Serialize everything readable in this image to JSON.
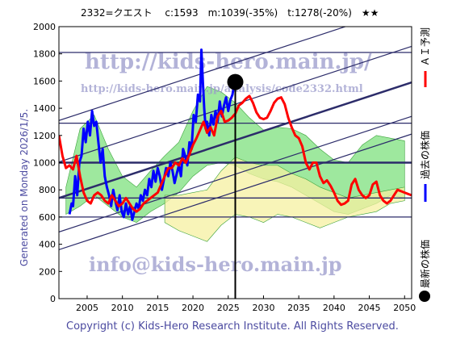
{
  "header": {
    "title": "2332=クエスト　 c:1593　m:1039(-35%)　t:1278(-20%)　★★"
  },
  "generated_label": "Generated on Monday 2026/1/5.",
  "copyright": "Copyright (c) Kids-Hero Research Institute. All Rights Reserved.",
  "watermarks": {
    "url_main": "http://kids-hero.main.jp/",
    "url_analysis": "http://kids-hero.main.jp/analysis/code2332.html",
    "email": "info@kids-hero.main.jp"
  },
  "legend": {
    "ai": "ＡＩ予測",
    "past": "過去の株価",
    "latest": "最新の株価"
  },
  "colors": {
    "ai_line": "#ff0000",
    "past_line": "#0000ff",
    "band_green": "#7ee07e",
    "band_yellow": "#f5f0a0",
    "channel_lines": "#2c2c6a",
    "axis_text": "#4b4aa0"
  },
  "chart_data": {
    "type": "line",
    "title": "2332=クエスト　 c:1593　m:1039(-35%)　t:1278(-20%)　★★",
    "xlim": [
      2001,
      2051
    ],
    "ylim": [
      0,
      2000
    ],
    "x_ticks": [
      2005,
      2010,
      2015,
      2020,
      2025,
      2030,
      2035,
      2040,
      2045,
      2050
    ],
    "y_ticks": [
      0,
      200,
      400,
      600,
      800,
      1000,
      1200,
      1400,
      1600,
      1800,
      2000
    ],
    "grid": false,
    "latest_point": {
      "x": 2026.0,
      "y": 1593
    },
    "current_year_marker": 2026.0,
    "horizontal_levels": [
      {
        "value": 1810,
        "weight": "normal"
      },
      {
        "value": 1290,
        "weight": "normal"
      },
      {
        "value": 1000,
        "weight": "bold"
      },
      {
        "value": 740,
        "weight": "normal"
      },
      {
        "value": 600,
        "weight": "normal"
      }
    ],
    "channel_lines": [
      {
        "from": [
          2001,
          1310
        ],
        "to": [
          2051,
          2160
        ],
        "weight": "normal"
      },
      {
        "from": [
          2001,
          1005
        ],
        "to": [
          2051,
          1855
        ],
        "weight": "normal"
      },
      {
        "from": [
          2001,
          740
        ],
        "to": [
          2051,
          1590
        ],
        "weight": "bold"
      },
      {
        "from": [
          2001,
          490
        ],
        "to": [
          2051,
          1340
        ],
        "weight": "normal"
      },
      {
        "from": [
          2001,
          360
        ],
        "to": [
          2051,
          1210
        ],
        "weight": "normal"
      }
    ],
    "series": [
      {
        "name": "過去の株価",
        "color": "#0000ff",
        "x": [
          2002.5,
          2002.8,
          2003.0,
          2003.3,
          2003.6,
          2003.9,
          2004.2,
          2004.5,
          2004.8,
          2005.1,
          2005.4,
          2005.7,
          2006.0,
          2006.3,
          2006.6,
          2006.9,
          2007.2,
          2007.5,
          2007.8,
          2008.1,
          2008.4,
          2008.7,
          2009.0,
          2009.3,
          2009.6,
          2009.9,
          2010.2,
          2010.5,
          2010.8,
          2011.1,
          2011.4,
          2011.7,
          2012.0,
          2012.3,
          2012.6,
          2012.9,
          2013.2,
          2013.5,
          2013.8,
          2014.1,
          2014.4,
          2014.7,
          2015.0,
          2015.3,
          2015.6,
          2015.9,
          2016.2,
          2016.5,
          2016.8,
          2017.1,
          2017.4,
          2017.7,
          2018.0,
          2018.3,
          2018.6,
          2018.9,
          2019.2,
          2019.5,
          2019.8,
          2020.1,
          2020.4,
          2020.7,
          2021.0,
          2021.2,
          2021.4,
          2021.6,
          2021.8,
          2022.0,
          2022.3,
          2022.6,
          2022.9,
          2023.2,
          2023.5,
          2023.8,
          2024.1,
          2024.4,
          2024.7,
          2025.0,
          2025.3,
          2025.6,
          2025.9
        ],
        "y": [
          620,
          700,
          680,
          900,
          760,
          1000,
          1050,
          1250,
          1150,
          1300,
          1200,
          1380,
          1270,
          1300,
          1150,
          1000,
          1100,
          900,
          820,
          760,
          680,
          800,
          720,
          650,
          760,
          640,
          600,
          700,
          620,
          680,
          580,
          640,
          700,
          660,
          760,
          720,
          800,
          760,
          880,
          820,
          940,
          860,
          960,
          900,
          800,
          880,
          960,
          900,
          1000,
          940,
          850,
          920,
          980,
          900,
          1100,
          1050,
          980,
          1150,
          1100,
          1350,
          1300,
          1500,
          1450,
          1830,
          1600,
          1400,
          1250,
          1300,
          1200,
          1350,
          1280,
          1380,
          1300,
          1450,
          1340,
          1420,
          1480,
          1380,
          1460,
          1500,
          1593
        ]
      },
      {
        "name": "ＡＩ予測",
        "color": "#ff0000",
        "x": [
          2001.0,
          2001.5,
          2002.0,
          2002.5,
          2003.0,
          2003.5,
          2004.0,
          2004.5,
          2005.0,
          2005.5,
          2006.0,
          2006.5,
          2007.0,
          2007.5,
          2008.0,
          2008.5,
          2009.0,
          2009.5,
          2010.0,
          2010.5,
          2011.0,
          2011.5,
          2012.0,
          2012.5,
          2013.0,
          2013.5,
          2014.0,
          2014.5,
          2015.0,
          2015.5,
          2016.0,
          2016.5,
          2017.0,
          2017.5,
          2018.0,
          2018.5,
          2019.0,
          2019.5,
          2020.0,
          2020.5,
          2021.0,
          2021.5,
          2022.0,
          2022.5,
          2023.0,
          2023.5,
          2024.0,
          2024.5,
          2025.0,
          2025.5,
          2026.0,
          2026.5,
          2027.0,
          2027.5,
          2028.0,
          2028.5,
          2029.0,
          2029.5,
          2030.0,
          2030.5,
          2031.0,
          2031.5,
          2032.0,
          2032.5,
          2033.0,
          2033.5,
          2034.0,
          2034.5,
          2035.0,
          2035.5,
          2036.0,
          2036.5,
          2037.0,
          2037.5,
          2038.0,
          2038.5,
          2039.0,
          2039.5,
          2040.0,
          2040.5,
          2041.0,
          2041.5,
          2042.0,
          2042.5,
          2043.0,
          2043.5,
          2044.0,
          2044.5,
          2045.0,
          2045.5,
          2046.0,
          2046.5,
          2047.0,
          2047.5,
          2048.0,
          2048.5,
          2049.0,
          2049.5,
          2050.0,
          2050.5,
          2051.0
        ],
        "y": [
          1200,
          1050,
          960,
          980,
          950,
          1050,
          900,
          780,
          720,
          700,
          760,
          780,
          760,
          720,
          700,
          760,
          720,
          680,
          700,
          740,
          700,
          660,
          640,
          660,
          700,
          720,
          740,
          760,
          780,
          840,
          900,
          960,
          960,
          1000,
          980,
          1030,
          1000,
          1060,
          1130,
          1180,
          1240,
          1300,
          1220,
          1260,
          1200,
          1340,
          1380,
          1300,
          1310,
          1330,
          1360,
          1420,
          1440,
          1470,
          1490,
          1440,
          1370,
          1330,
          1320,
          1330,
          1380,
          1440,
          1470,
          1480,
          1430,
          1330,
          1260,
          1200,
          1180,
          1120,
          1000,
          950,
          1000,
          1000,
          900,
          850,
          870,
          830,
          780,
          720,
          690,
          700,
          720,
          840,
          880,
          800,
          760,
          740,
          760,
          840,
          860,
          760,
          720,
          700,
          720,
          760,
          800,
          790,
          780,
          770,
          760
        ]
      }
    ],
    "green_band": {
      "x": [
        2002.0,
        2004.0,
        2006.0,
        2008.0,
        2010.0,
        2012.0,
        2014.0,
        2016.0,
        2018.0,
        2020.0,
        2022.0,
        2024.0,
        2026.0,
        2028.0,
        2030.0,
        2032.0,
        2034.0,
        2036.0,
        2038.0,
        2040.0,
        2042.0,
        2044.0,
        2046.0,
        2048.0,
        2050.0
      ],
      "upper": [
        820,
        1250,
        1350,
        1100,
        900,
        820,
        940,
        1050,
        1150,
        1380,
        1560,
        1520,
        1440,
        1330,
        1240,
        1260,
        1250,
        1200,
        1100,
        1020,
        1000,
        1130,
        1200,
        1180,
        1160
      ],
      "lower": [
        620,
        680,
        760,
        680,
        600,
        560,
        640,
        700,
        780,
        900,
        980,
        1000,
        980,
        920,
        880,
        860,
        820,
        760,
        700,
        640,
        620,
        660,
        700,
        760,
        740
      ]
    },
    "yellow_band": {
      "x": [
        2016.0,
        2018.0,
        2020.0,
        2022.0,
        2024.0,
        2026.0,
        2028.0,
        2030.0,
        2032.0,
        2034.0,
        2036.0,
        2038.0,
        2040.0,
        2042.0,
        2044.0,
        2046.0,
        2048.0,
        2050.0
      ],
      "upper": [
        760,
        760,
        780,
        800,
        940,
        1040,
        1000,
        980,
        980,
        920,
        880,
        820,
        780,
        740,
        760,
        780,
        800,
        820
      ],
      "lower": [
        560,
        500,
        460,
        420,
        540,
        620,
        600,
        560,
        620,
        600,
        560,
        520,
        560,
        600,
        620,
        640,
        700,
        720
      ]
    }
  }
}
